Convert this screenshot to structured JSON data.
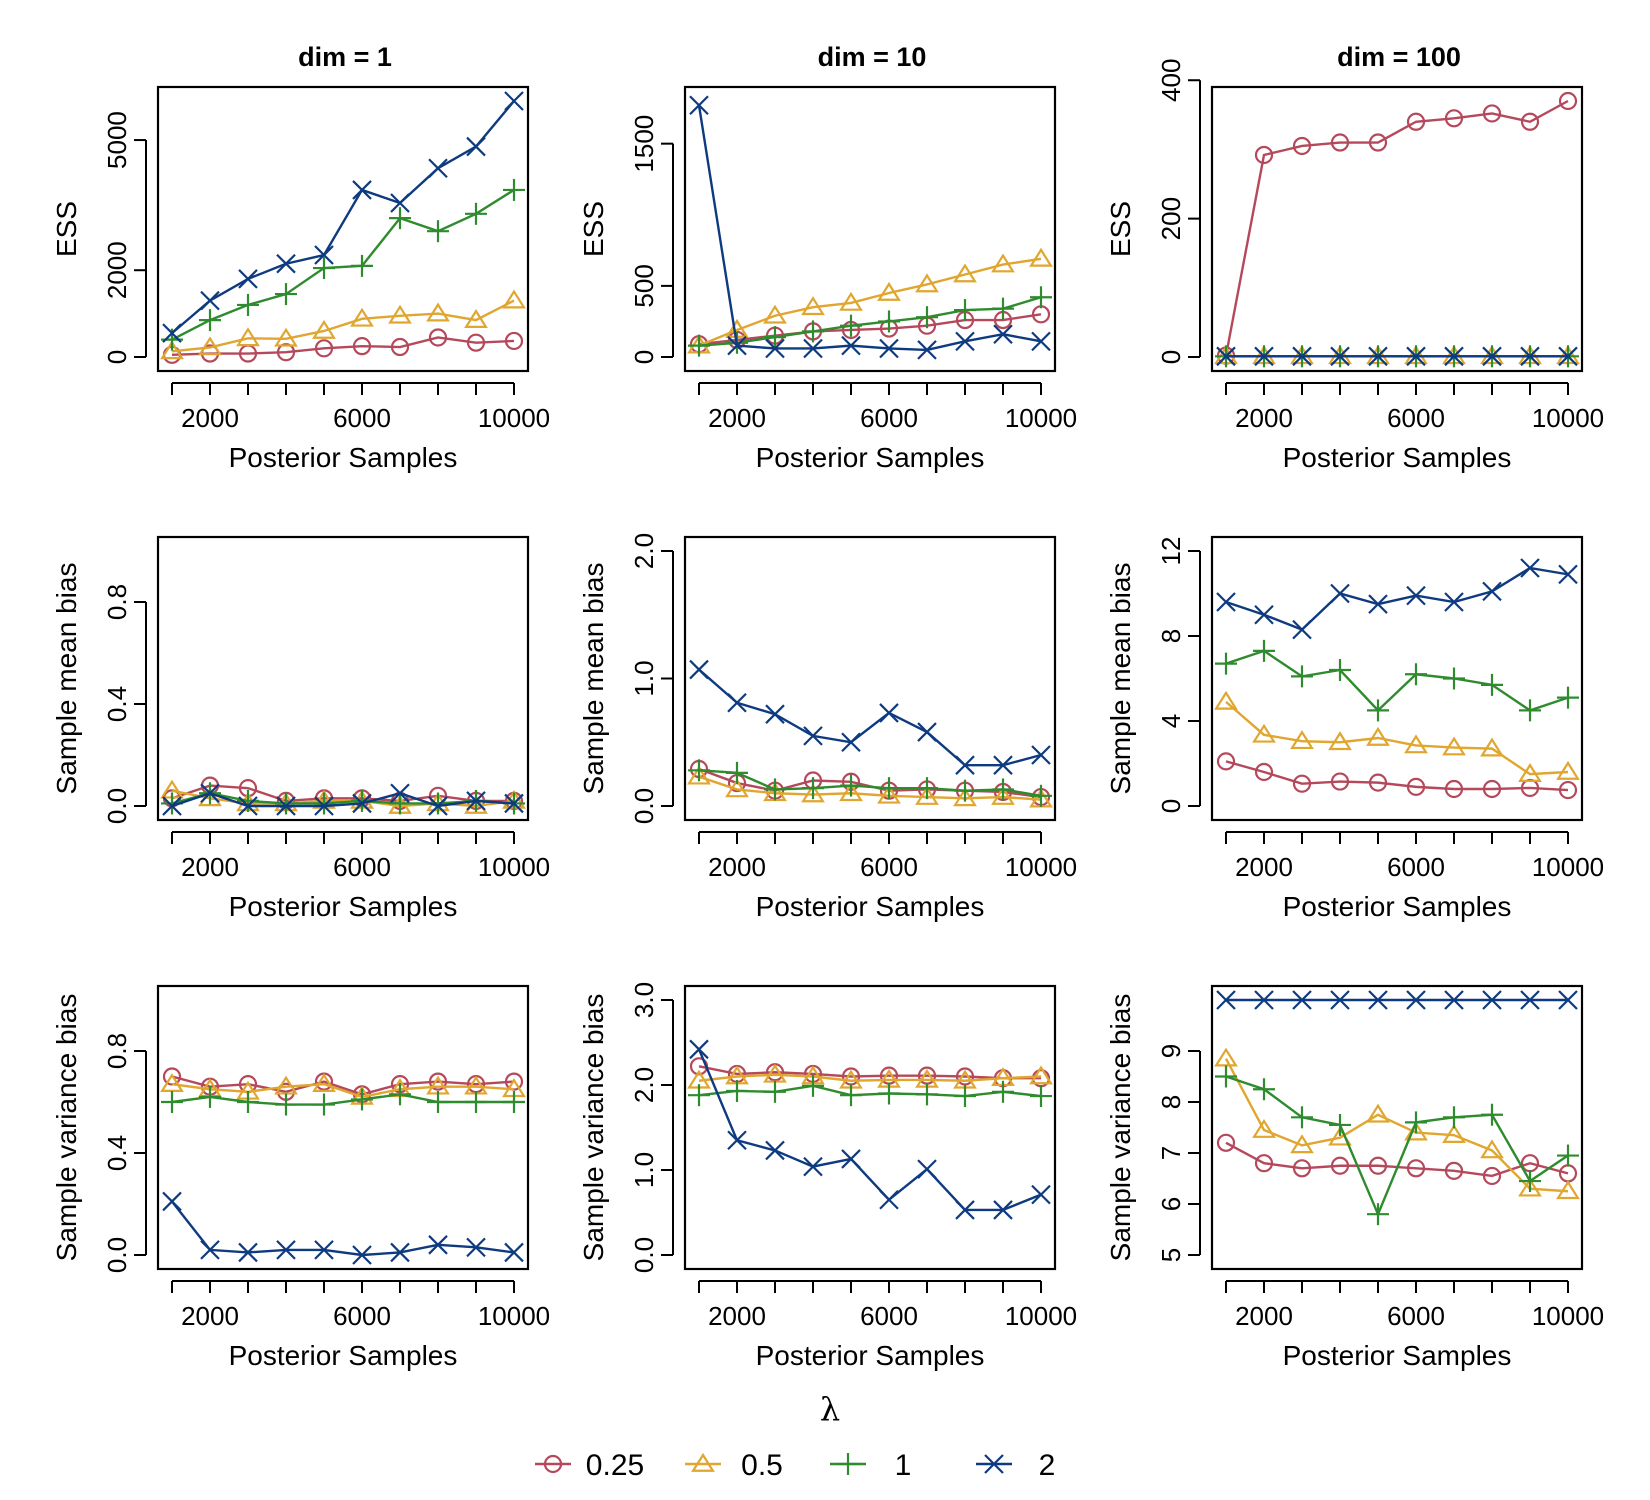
{
  "legend": {
    "title": "λ",
    "entries": [
      {
        "label": "0.25",
        "color": "#b5495b",
        "marker": "circle"
      },
      {
        "label": "0.5",
        "color": "#e0a62f",
        "marker": "triangle"
      },
      {
        "label": "1",
        "color": "#2e8b2e",
        "marker": "plus"
      },
      {
        "label": "2",
        "color": "#0e3b80",
        "marker": "cross"
      }
    ]
  },
  "columns": [
    "dim = 1",
    "dim = 10",
    "dim = 100"
  ],
  "chart_data": [
    {
      "type": "line",
      "row": 0,
      "col": 0,
      "title": "dim = 1",
      "xlabel": "Posterior Samples",
      "ylabel": "ESS",
      "xlim": [
        1000,
        10000
      ],
      "ylim": [
        0,
        5900
      ],
      "xticks": [
        2000,
        6000,
        10000
      ],
      "yticks": [
        0,
        2000,
        5000
      ],
      "x": [
        1000,
        2000,
        3000,
        4000,
        5000,
        6000,
        7000,
        8000,
        9000,
        10000
      ],
      "series": [
        {
          "name": "0.25",
          "values": [
            50,
            80,
            80,
            110,
            200,
            250,
            230,
            450,
            330,
            370
          ]
        },
        {
          "name": "0.5",
          "values": [
            130,
            220,
            430,
            420,
            600,
            880,
            950,
            1000,
            850,
            1300
          ]
        },
        {
          "name": "1",
          "values": [
            400,
            850,
            1200,
            1450,
            2050,
            2100,
            3200,
            2900,
            3300,
            3850
          ]
        },
        {
          "name": "2",
          "values": [
            550,
            1300,
            1800,
            2150,
            2350,
            3850,
            3550,
            4350,
            4850,
            5900
          ]
        }
      ]
    },
    {
      "type": "line",
      "row": 0,
      "col": 1,
      "title": "dim = 10",
      "xlabel": "Posterior Samples",
      "ylabel": "ESS",
      "xlim": [
        1000,
        10000
      ],
      "ylim": [
        0,
        1800
      ],
      "xticks": [
        2000,
        6000,
        10000
      ],
      "yticks": [
        0,
        500,
        1500
      ],
      "x": [
        1000,
        2000,
        3000,
        4000,
        5000,
        6000,
        7000,
        8000,
        9000,
        10000
      ],
      "series": [
        {
          "name": "0.25",
          "values": [
            90,
            120,
            150,
            180,
            190,
            200,
            220,
            260,
            260,
            300
          ]
        },
        {
          "name": "0.5",
          "values": [
            80,
            190,
            290,
            350,
            380,
            450,
            510,
            580,
            650,
            690
          ]
        },
        {
          "name": "1",
          "values": [
            80,
            100,
            140,
            180,
            220,
            250,
            280,
            330,
            340,
            420
          ]
        },
        {
          "name": "2",
          "values": [
            1770,
            80,
            60,
            60,
            80,
            60,
            50,
            110,
            160,
            110
          ]
        }
      ]
    },
    {
      "type": "line",
      "row": 0,
      "col": 2,
      "title": "dim = 100",
      "xlabel": "Posterior Samples",
      "ylabel": "ESS",
      "xlim": [
        1000,
        10000
      ],
      "ylim": [
        0,
        370
      ],
      "xticks": [
        2000,
        6000,
        10000
      ],
      "yticks": [
        0,
        200,
        400
      ],
      "x": [
        1000,
        2000,
        3000,
        4000,
        5000,
        6000,
        7000,
        8000,
        9000,
        10000
      ],
      "series": [
        {
          "name": "0.25",
          "values": [
            2,
            292,
            305,
            310,
            310,
            340,
            345,
            352,
            340,
            370
          ]
        },
        {
          "name": "0.5",
          "values": [
            1,
            1,
            1,
            1,
            1,
            1,
            1,
            1,
            1,
            1
          ]
        },
        {
          "name": "1",
          "values": [
            1,
            1,
            1,
            1,
            1,
            1,
            1,
            1,
            1,
            1
          ]
        },
        {
          "name": "2",
          "values": [
            1,
            1,
            1,
            1,
            1,
            1,
            1,
            1,
            1,
            1
          ]
        }
      ]
    },
    {
      "type": "line",
      "row": 1,
      "col": 0,
      "xlabel": "Posterior Samples",
      "ylabel": "Sample mean bias",
      "xlim": [
        1000,
        10000
      ],
      "ylim": [
        0,
        1.0
      ],
      "xticks": [
        2000,
        6000,
        10000
      ],
      "yticks": [
        0.0,
        0.4,
        0.8
      ],
      "x": [
        1000,
        2000,
        3000,
        4000,
        5000,
        6000,
        7000,
        8000,
        9000,
        10000
      ],
      "series": [
        {
          "name": "0.25",
          "values": [
            0.03,
            0.08,
            0.07,
            0.02,
            0.03,
            0.03,
            0.02,
            0.04,
            0.02,
            0.02
          ]
        },
        {
          "name": "0.5",
          "values": [
            0.06,
            0.03,
            0.01,
            0.01,
            0.02,
            0.02,
            0.0,
            0.01,
            0.0,
            0.02
          ]
        },
        {
          "name": "1",
          "values": [
            0.01,
            0.05,
            0.02,
            0.01,
            0.01,
            0.02,
            0.01,
            0.01,
            0.02,
            0.01
          ]
        },
        {
          "name": "2",
          "values": [
            0.0,
            0.05,
            0.0,
            0.0,
            0.0,
            0.01,
            0.05,
            0.0,
            0.02,
            0.01
          ]
        }
      ]
    },
    {
      "type": "line",
      "row": 1,
      "col": 1,
      "xlabel": "Posterior Samples",
      "ylabel": "Sample mean bias",
      "xlim": [
        1000,
        10000
      ],
      "ylim": [
        0,
        2.0
      ],
      "xticks": [
        2000,
        6000,
        10000
      ],
      "yticks": [
        0.0,
        1.0,
        2.0
      ],
      "x": [
        1000,
        2000,
        3000,
        4000,
        5000,
        6000,
        7000,
        8000,
        9000,
        10000
      ],
      "series": [
        {
          "name": "0.25",
          "values": [
            0.29,
            0.18,
            0.12,
            0.2,
            0.19,
            0.12,
            0.13,
            0.12,
            0.11,
            0.07
          ]
        },
        {
          "name": "0.5",
          "values": [
            0.23,
            0.13,
            0.1,
            0.09,
            0.1,
            0.08,
            0.07,
            0.06,
            0.07,
            0.05
          ]
        },
        {
          "name": "1",
          "values": [
            0.28,
            0.26,
            0.13,
            0.14,
            0.16,
            0.14,
            0.14,
            0.12,
            0.13,
            0.08
          ]
        },
        {
          "name": "2",
          "values": [
            1.07,
            0.81,
            0.72,
            0.55,
            0.5,
            0.73,
            0.58,
            0.32,
            0.32,
            0.4
          ]
        }
      ]
    },
    {
      "type": "line",
      "row": 1,
      "col": 2,
      "xlabel": "Posterior Samples",
      "ylabel": "Sample mean bias",
      "xlim": [
        1000,
        10000
      ],
      "ylim": [
        0,
        12
      ],
      "xticks": [
        2000,
        6000,
        10000
      ],
      "yticks": [
        0,
        4,
        8,
        12
      ],
      "x": [
        1000,
        2000,
        3000,
        4000,
        5000,
        6000,
        7000,
        8000,
        9000,
        10000
      ],
      "series": [
        {
          "name": "0.25",
          "values": [
            2.1,
            1.6,
            1.05,
            1.15,
            1.1,
            0.9,
            0.8,
            0.8,
            0.85,
            0.75
          ]
        },
        {
          "name": "0.5",
          "values": [
            4.9,
            3.35,
            3.05,
            3.0,
            3.2,
            2.85,
            2.75,
            2.7,
            1.5,
            1.6
          ]
        },
        {
          "name": "1",
          "values": [
            6.7,
            7.3,
            6.1,
            6.4,
            4.5,
            6.2,
            6.0,
            5.7,
            4.5,
            5.1
          ]
        },
        {
          "name": "2",
          "values": [
            9.6,
            9.0,
            8.3,
            10.0,
            9.5,
            9.9,
            9.6,
            10.1,
            11.2,
            10.9
          ]
        }
      ]
    },
    {
      "type": "line",
      "row": 2,
      "col": 0,
      "xlabel": "Posterior Samples",
      "ylabel": "Sample variance bias",
      "xlim": [
        1000,
        10000
      ],
      "ylim": [
        0,
        1.0
      ],
      "xticks": [
        2000,
        6000,
        10000
      ],
      "yticks": [
        0.0,
        0.4,
        0.8
      ],
      "x": [
        1000,
        2000,
        3000,
        4000,
        5000,
        6000,
        7000,
        8000,
        9000,
        10000
      ],
      "series": [
        {
          "name": "0.25",
          "values": [
            0.7,
            0.66,
            0.67,
            0.64,
            0.68,
            0.63,
            0.67,
            0.68,
            0.67,
            0.68
          ]
        },
        {
          "name": "0.5",
          "values": [
            0.67,
            0.65,
            0.64,
            0.66,
            0.67,
            0.62,
            0.65,
            0.66,
            0.66,
            0.65
          ]
        },
        {
          "name": "1",
          "values": [
            0.6,
            0.62,
            0.6,
            0.59,
            0.59,
            0.61,
            0.63,
            0.6,
            0.6,
            0.6
          ]
        },
        {
          "name": "2",
          "values": [
            0.21,
            0.02,
            0.01,
            0.02,
            0.02,
            0.0,
            0.01,
            0.04,
            0.03,
            0.01
          ]
        }
      ]
    },
    {
      "type": "line",
      "row": 2,
      "col": 1,
      "xlabel": "Posterior Samples",
      "ylabel": "Sample variance bias",
      "xlim": [
        1000,
        10000
      ],
      "ylim": [
        0,
        3.0
      ],
      "xticks": [
        2000,
        6000,
        10000
      ],
      "yticks": [
        0.0,
        1.0,
        2.0,
        3.0
      ],
      "x": [
        1000,
        2000,
        3000,
        4000,
        5000,
        6000,
        7000,
        8000,
        9000,
        10000
      ],
      "series": [
        {
          "name": "0.25",
          "values": [
            2.22,
            2.13,
            2.15,
            2.13,
            2.1,
            2.11,
            2.11,
            2.1,
            2.08,
            2.08
          ]
        },
        {
          "name": "0.5",
          "values": [
            2.05,
            2.1,
            2.12,
            2.1,
            2.05,
            2.06,
            2.06,
            2.05,
            2.08,
            2.1
          ]
        },
        {
          "name": "1",
          "values": [
            1.88,
            1.93,
            1.92,
            1.99,
            1.88,
            1.9,
            1.89,
            1.87,
            1.92,
            1.87
          ]
        },
        {
          "name": "2",
          "values": [
            2.42,
            1.35,
            1.23,
            1.04,
            1.13,
            0.65,
            1.01,
            0.53,
            0.53,
            0.71
          ]
        }
      ]
    },
    {
      "type": "line",
      "row": 2,
      "col": 2,
      "xlabel": "Posterior Samples",
      "ylabel": "Sample variance bias",
      "xlim": [
        1000,
        10000
      ],
      "ylim": [
        5,
        10
      ],
      "xticks": [
        2000,
        6000,
        10000
      ],
      "yticks": [
        5,
        6,
        7,
        8,
        9
      ],
      "x": [
        1000,
        2000,
        3000,
        4000,
        5000,
        6000,
        7000,
        8000,
        9000,
        10000
      ],
      "series": [
        {
          "name": "0.25",
          "values": [
            7.2,
            6.8,
            6.7,
            6.75,
            6.75,
            6.7,
            6.65,
            6.55,
            6.8,
            6.6
          ]
        },
        {
          "name": "0.5",
          "values": [
            8.85,
            7.45,
            7.15,
            7.3,
            7.75,
            7.4,
            7.35,
            7.05,
            6.3,
            6.25
          ]
        },
        {
          "name": "1",
          "values": [
            8.5,
            8.25,
            7.7,
            7.55,
            5.8,
            7.6,
            7.7,
            7.75,
            6.45,
            6.95
          ]
        },
        {
          "name": "2",
          "values": [
            10,
            10,
            10,
            10,
            10,
            10,
            10,
            10,
            10,
            10
          ]
        }
      ]
    }
  ]
}
